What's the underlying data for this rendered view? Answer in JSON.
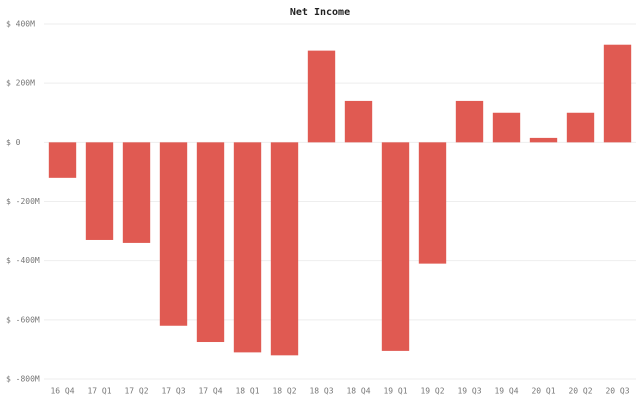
{
  "chart_data": {
    "type": "bar",
    "title": "Net Income",
    "categories": [
      "16 Q4",
      "17 Q1",
      "17 Q2",
      "17 Q3",
      "17 Q4",
      "18 Q1",
      "18 Q2",
      "18 Q3",
      "18 Q4",
      "19 Q1",
      "19 Q2",
      "19 Q3",
      "19 Q4",
      "20 Q1",
      "20 Q2",
      "20 Q3"
    ],
    "values": [
      -120,
      -330,
      -340,
      -620,
      -675,
      -710,
      -720,
      310,
      140,
      -705,
      -410,
      140,
      100,
      15,
      100,
      330
    ],
    "color": "#e05a52",
    "ylim": [
      -800,
      400
    ],
    "yticks": [
      {
        "value": -800,
        "label": "$ -800M"
      },
      {
        "value": -600,
        "label": "$ -600M"
      },
      {
        "value": -400,
        "label": "$ -400M"
      },
      {
        "value": -200,
        "label": "$ -200M"
      },
      {
        "value": 0,
        "label": "$ 0"
      },
      {
        "value": 200,
        "label": "$ 200M"
      },
      {
        "value": 400,
        "label": "$ 400M"
      }
    ],
    "grid": true
  }
}
